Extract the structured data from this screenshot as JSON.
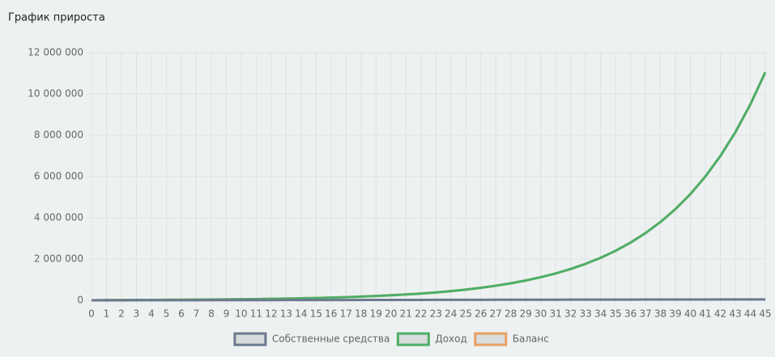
{
  "chart_data": {
    "type": "line",
    "title": "График прироста",
    "categories": [
      "0",
      "1",
      "2",
      "3",
      "4",
      "5",
      "6",
      "7",
      "8",
      "9",
      "10",
      "11",
      "12",
      "13",
      "14",
      "15",
      "16",
      "17",
      "18",
      "19",
      "20",
      "21",
      "22",
      "23",
      "24",
      "25",
      "26",
      "27",
      "28",
      "29",
      "30",
      "31",
      "32",
      "33",
      "34",
      "35",
      "36",
      "37",
      "38",
      "39",
      "40",
      "41",
      "42",
      "43",
      "44",
      "45"
    ],
    "series": [
      {
        "name": "Собственные средства",
        "color": "#6c7a8e",
        "values": [
          0,
          1000,
          2000,
          3000,
          4000,
          5000,
          6000,
          7000,
          8000,
          9000,
          10000,
          11000,
          12000,
          13000,
          14000,
          15000,
          16000,
          17000,
          18000,
          19000,
          20000,
          21000,
          22000,
          23000,
          24000,
          25000,
          26000,
          27000,
          28000,
          29000,
          30000,
          31000,
          32000,
          33000,
          34000,
          35000,
          36000,
          37000,
          38000,
          39000,
          40000,
          41000,
          42000,
          43000,
          44000,
          45000
        ]
      },
      {
        "name": "Доход",
        "color": "#4caf68",
        "values": [
          0,
          13000,
          15000,
          18000,
          21000,
          25000,
          29000,
          33000,
          39000,
          45000,
          53000,
          61000,
          72000,
          83000,
          97000,
          113000,
          132000,
          154000,
          179000,
          209000,
          243000,
          283000,
          330000,
          384000,
          448000,
          521000,
          607000,
          708000,
          824000,
          960000,
          1119000,
          1303000,
          1518000,
          1768000,
          2060000,
          2400000,
          2796000,
          3257000,
          3795000,
          4421000,
          5150000,
          5999000,
          6989000,
          8142000,
          9485000,
          11050000
        ]
      },
      {
        "name": "Баланс",
        "color": "#e8a062",
        "values": [
          0,
          13000,
          15000,
          18000,
          21000,
          25000,
          29000,
          33000,
          39000,
          45000,
          53000,
          61000,
          72000,
          83000,
          97000,
          113000,
          132000,
          154000,
          179000,
          209000,
          243000,
          283000,
          330000,
          384000,
          448000,
          521000,
          607000,
          708000,
          824000,
          960000,
          1119000,
          1303000,
          1518000,
          1768000,
          2060000,
          2400000,
          2796000,
          3257000,
          3795000,
          4421000,
          5150000,
          5999000,
          6989000,
          8142000,
          9485000,
          11050000
        ]
      }
    ],
    "ylim": [
      0,
      12000000
    ],
    "yticks": [
      0,
      {
        "value": 2000000,
        "label": "2 000 000"
      },
      {
        "value": 4000000,
        "label": "4 000 000"
      },
      {
        "value": 6000000,
        "label": "6 000 000"
      },
      {
        "value": 8000000,
        "label": "8 000 000"
      },
      {
        "value": 10000000,
        "label": "10 000 000"
      },
      {
        "value": 12000000,
        "label": "12 000 000"
      }
    ],
    "grid": true
  }
}
